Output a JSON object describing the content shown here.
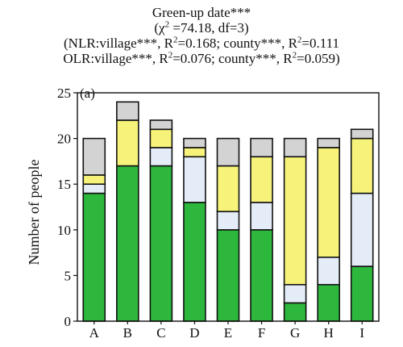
{
  "chart_data": {
    "type": "bar",
    "stacked": true,
    "title": "Green-up date***",
    "subtitle_lines": [
      "(χ² =74.18, df=3)",
      "(NLR:village***, R²=0.168; county***, R²=0.111",
      "OLR:village***, R²=0.076; county***, R²=0.059)"
    ],
    "panel_label": "(a)",
    "xlabel": "",
    "ylabel": "Number of people",
    "ylim": [
      0,
      25
    ],
    "yticks": [
      0,
      5,
      10,
      15,
      20,
      25
    ],
    "grid": false,
    "legend": "none",
    "categories": [
      "A",
      "B",
      "C",
      "D",
      "E",
      "F",
      "G",
      "H",
      "I"
    ],
    "series": [
      {
        "color": "#2db83d",
        "values": [
          14,
          17,
          17,
          13,
          10,
          10,
          2,
          4,
          6
        ]
      },
      {
        "color": "#e4ecf8",
        "values": [
          1,
          0,
          2,
          5,
          2,
          3,
          2,
          3,
          8
        ]
      },
      {
        "color": "#f7f37a",
        "values": [
          1,
          5,
          2,
          1,
          5,
          5,
          14,
          12,
          6
        ]
      },
      {
        "color": "#d3d3d3",
        "values": [
          4,
          2,
          1,
          1,
          3,
          2,
          2,
          1,
          1
        ]
      }
    ]
  }
}
